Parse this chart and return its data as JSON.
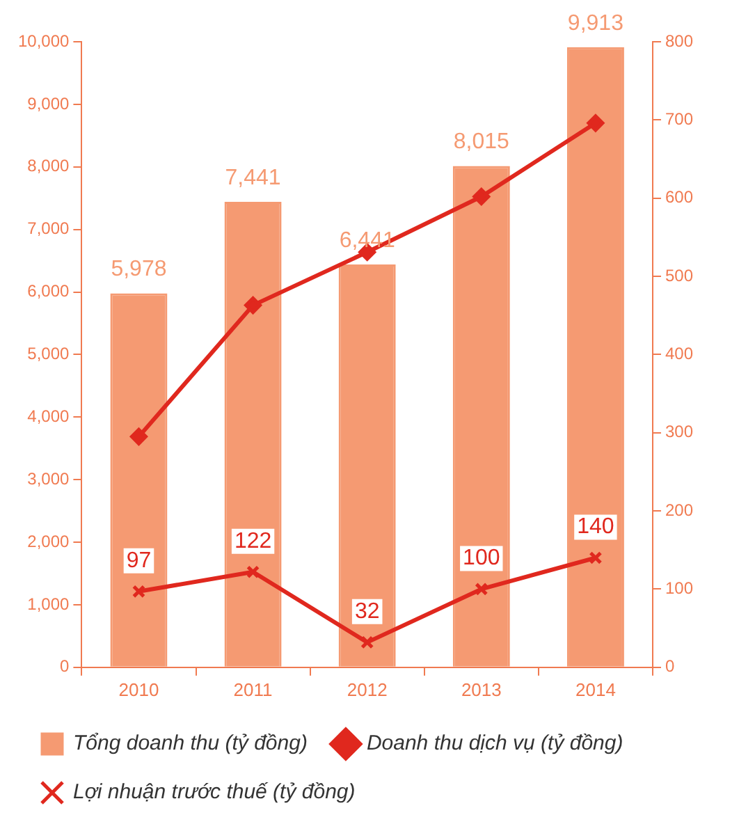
{
  "chart_data": {
    "type": "bar",
    "categories": [
      "2010",
      "2011",
      "2012",
      "2013",
      "2014"
    ],
    "series": [
      {
        "name": "Tổng doanh thu (tỷ đồng)",
        "color": "#f59a72",
        "values": [
          5978,
          7441,
          6441,
          8015,
          9913
        ],
        "value_labels": [
          "5,978",
          "7,441",
          "6,441",
          "8,015",
          "9,913"
        ]
      },
      {
        "name": "Doanh thu dịch vụ (tỷ đồng)",
        "type": "line",
        "axis": "y2",
        "color": "#e0281e",
        "marker": "diamond",
        "values": [
          295,
          463,
          531,
          602,
          696
        ]
      },
      {
        "name": "Lợi nhuận trước thuế (tỷ đồng)",
        "type": "line",
        "axis": "y2",
        "color": "#e0281e",
        "marker": "cross",
        "values": [
          97,
          122,
          32,
          100,
          140
        ],
        "value_labels": [
          "97",
          "122",
          "32",
          "100",
          "140"
        ]
      }
    ],
    "ylim": [
      0,
      10000
    ],
    "yticks": [
      0,
      {
        "value": 1000,
        "label": "1,000"
      },
      {
        "value": 2000,
        "label": "2,000"
      },
      {
        "value": 3000,
        "label": "3,000"
      },
      {
        "value": 4000,
        "label": "4,000"
      },
      {
        "value": 5000,
        "label": "5,000"
      },
      {
        "value": 6000,
        "label": "6,000"
      },
      {
        "value": 7000,
        "label": "7,000"
      },
      {
        "value": 8000,
        "label": "8,000"
      },
      {
        "value": 9000,
        "label": "9,000"
      },
      {
        "value": 10000,
        "label": "10,000"
      }
    ],
    "y2lim": [
      0,
      800
    ],
    "y2ticks": [
      0,
      100,
      200,
      300,
      400,
      500,
      600,
      700,
      800
    ],
    "grid": false,
    "legend": "bottom",
    "line_style": "solid"
  }
}
